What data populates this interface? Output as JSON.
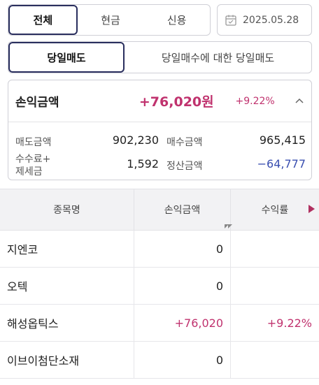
{
  "filter_tabs": {
    "all": "전체",
    "cash": "현금",
    "credit": "신용",
    "active": "all"
  },
  "date": {
    "value": "2025.05.28",
    "icon": "calendar-icon"
  },
  "sell_tabs": {
    "same_day_sell": "당일매도",
    "same_day_buy_sell": "당일매수에 대한 당일매도",
    "active": "same_day_sell"
  },
  "summary": {
    "label": "손익금액",
    "profit_amount": "+76,020원",
    "profit_rate": "+9.22%",
    "collapse_icon": "chevron-up-icon",
    "sell_amount_label": "매도금액",
    "sell_amount": "902,230",
    "buy_amount_label": "매수금액",
    "buy_amount": "965,415",
    "fee_tax_label_1": "수수료+",
    "fee_tax_label_2": "제세금",
    "fee_tax": "1,592",
    "settlement_label": "정산금액",
    "settlement": "−64,777",
    "colors": {
      "positive": "#c0326e",
      "negative": "#3a4fb0",
      "active_border": "#2a2f5e"
    }
  },
  "table": {
    "headers": [
      "종목명",
      "손익금액",
      "수익률"
    ],
    "rows": [
      {
        "name": "지엔코",
        "profit": "0",
        "rate": ""
      },
      {
        "name": "오텍",
        "profit": "0",
        "rate": ""
      },
      {
        "name": "해성옵틱스",
        "profit": "+76,020",
        "rate": "+9.22%"
      },
      {
        "name": "이브이첨단소재",
        "profit": "0",
        "rate": ""
      }
    ]
  }
}
